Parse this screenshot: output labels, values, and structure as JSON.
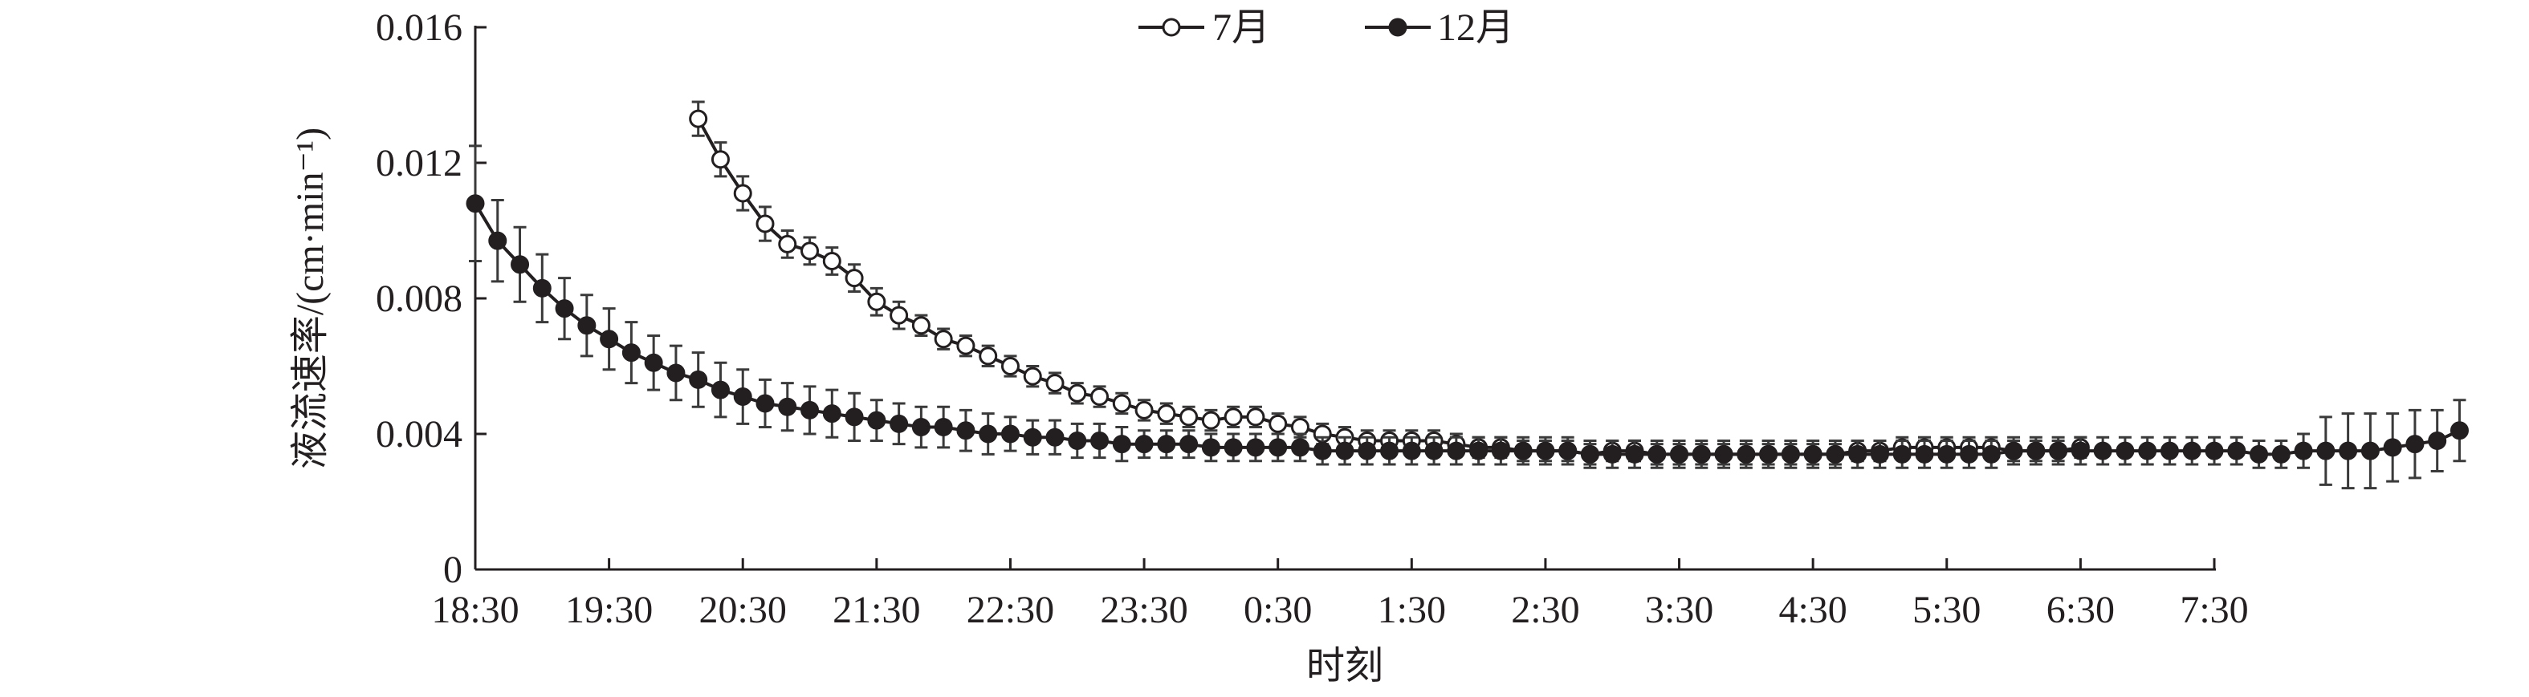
{
  "chart_data": {
    "type": "line",
    "title": "",
    "xlabel": "时刻",
    "ylabel": "液流速率/(cm·min⁻¹)",
    "ylim": [
      0,
      0.016
    ],
    "yticks": [
      "0",
      "0.004",
      "0.008",
      "0.012",
      "0.016"
    ],
    "xlim": [
      "18:30",
      "7:30"
    ],
    "xticks": [
      "18:30",
      "19:30",
      "20:30",
      "21:30",
      "22:30",
      "23:30",
      "0:30",
      "1:30",
      "2:30",
      "3:30",
      "4:30",
      "5:30",
      "6:30",
      "7:30"
    ],
    "x_step_minutes": 10,
    "legend_position": "top-center",
    "grid": false,
    "series": [
      {
        "name": "7月",
        "marker": "open-circle",
        "color": "#231f20",
        "start": "20:10",
        "values": [
          0.0133,
          0.0121,
          0.0111,
          0.0102,
          0.0096,
          0.0094,
          0.0091,
          0.0086,
          0.0079,
          0.0075,
          0.0072,
          0.0068,
          0.0066,
          0.0063,
          0.006,
          0.0057,
          0.0055,
          0.0052,
          0.0051,
          0.0049,
          0.0047,
          0.0046,
          0.0045,
          0.0044,
          0.0045,
          0.0045,
          0.0043,
          0.0042,
          0.004,
          0.0039,
          0.0038,
          0.0038,
          0.0038,
          0.0038,
          0.0037,
          0.0036,
          0.0036,
          0.0035,
          0.0035,
          0.0035,
          0.0034,
          0.0035,
          0.0035,
          0.0034,
          0.0034,
          0.0034,
          0.0034,
          0.0034,
          0.0034,
          0.0034,
          0.0034,
          0.0034,
          0.0035,
          0.0035,
          0.0036,
          0.0036,
          0.0036,
          0.0036,
          0.0036,
          0.0035,
          0.0035,
          0.0035,
          0.0036
        ],
        "errors": [
          0.0005,
          0.0005,
          0.0005,
          0.0005,
          0.0004,
          0.0004,
          0.0004,
          0.0004,
          0.0004,
          0.0004,
          0.0003,
          0.0003,
          0.0003,
          0.0003,
          0.0003,
          0.0003,
          0.0003,
          0.0003,
          0.0003,
          0.0003,
          0.0003,
          0.0003,
          0.0003,
          0.0003,
          0.0003,
          0.0003,
          0.0003,
          0.0003,
          0.0003,
          0.0003,
          0.0003,
          0.0003,
          0.0003,
          0.0003,
          0.0003,
          0.0003,
          0.0003,
          0.0003,
          0.0003,
          0.0003,
          0.0003,
          0.0003,
          0.0003,
          0.0003,
          0.0003,
          0.0003,
          0.0003,
          0.0003,
          0.0003,
          0.0003,
          0.0003,
          0.0003,
          0.0003,
          0.0003,
          0.0003,
          0.0003,
          0.0003,
          0.0003,
          0.0003,
          0.0003,
          0.0003,
          0.0003,
          0.0003
        ]
      },
      {
        "name": "12月",
        "marker": "filled-circle",
        "color": "#231f20",
        "start": "18:30",
        "values": [
          0.0108,
          0.0097,
          0.009,
          0.0083,
          0.0077,
          0.0072,
          0.0068,
          0.0064,
          0.0061,
          0.0058,
          0.0056,
          0.0053,
          0.0051,
          0.0049,
          0.0048,
          0.0047,
          0.0046,
          0.0045,
          0.0044,
          0.0043,
          0.0042,
          0.0042,
          0.0041,
          0.004,
          0.004,
          0.0039,
          0.0039,
          0.0038,
          0.0038,
          0.0037,
          0.0037,
          0.0037,
          0.0037,
          0.0036,
          0.0036,
          0.0036,
          0.0036,
          0.0036,
          0.0035,
          0.0035,
          0.0035,
          0.0035,
          0.0035,
          0.0035,
          0.0035,
          0.0035,
          0.0035,
          0.0035,
          0.0035,
          0.0035,
          0.0034,
          0.0034,
          0.0034,
          0.0034,
          0.0034,
          0.0034,
          0.0034,
          0.0034,
          0.0034,
          0.0034,
          0.0034,
          0.0034,
          0.0034,
          0.0034,
          0.0034,
          0.0034,
          0.0034,
          0.0034,
          0.0034,
          0.0035,
          0.0035,
          0.0035,
          0.0035,
          0.0035,
          0.0035,
          0.0035,
          0.0035,
          0.0035,
          0.0035,
          0.0035,
          0.0034,
          0.0034,
          0.0035,
          0.0035,
          0.0035,
          0.0035,
          0.0036,
          0.0037,
          0.0038,
          0.0041
        ],
        "errors": [
          0.0017,
          0.0012,
          0.0011,
          0.001,
          0.0009,
          0.0009,
          0.0009,
          0.0009,
          0.0008,
          0.0008,
          0.0008,
          0.0008,
          0.0008,
          0.0007,
          0.0007,
          0.0007,
          0.0007,
          0.0007,
          0.0006,
          0.0006,
          0.0006,
          0.0006,
          0.0006,
          0.0006,
          0.0005,
          0.0005,
          0.0005,
          0.0005,
          0.0005,
          0.0005,
          0.0004,
          0.0004,
          0.0004,
          0.0004,
          0.0004,
          0.0004,
          0.0004,
          0.0004,
          0.0004,
          0.0004,
          0.0004,
          0.0004,
          0.0004,
          0.0004,
          0.0004,
          0.0004,
          0.0004,
          0.0004,
          0.0004,
          0.0004,
          0.0004,
          0.0004,
          0.0004,
          0.0004,
          0.0004,
          0.0004,
          0.0004,
          0.0004,
          0.0004,
          0.0004,
          0.0004,
          0.0004,
          0.0004,
          0.0004,
          0.0004,
          0.0004,
          0.0004,
          0.0004,
          0.0004,
          0.0004,
          0.0004,
          0.0004,
          0.0004,
          0.0004,
          0.0004,
          0.0004,
          0.0004,
          0.0004,
          0.0004,
          0.0004,
          0.0004,
          0.0004,
          0.0005,
          0.001,
          0.0011,
          0.0011,
          0.001,
          0.001,
          0.0009,
          0.0009
        ]
      }
    ]
  }
}
